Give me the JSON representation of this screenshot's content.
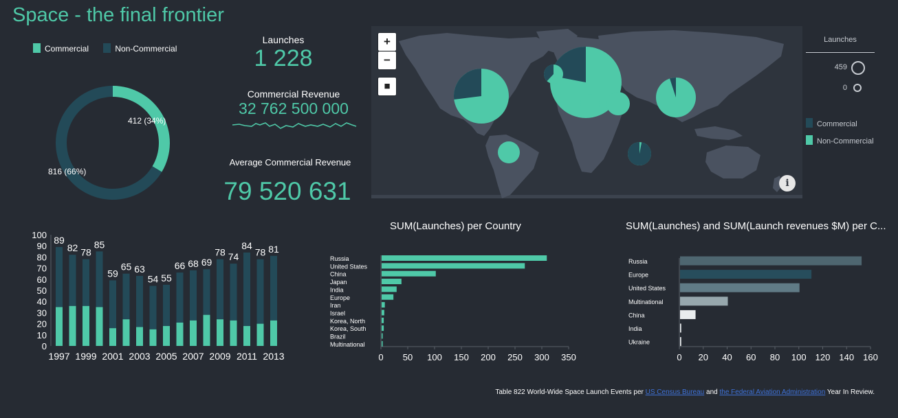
{
  "title": "Space - the final frontier",
  "colors": {
    "accent": "#4fc9a8",
    "dark_series": "#234a58",
    "background": "#262b33",
    "map_bg": "#2e343d",
    "land": "#4a5260"
  },
  "donut": {
    "legend": [
      {
        "label": "Commercial",
        "color": "#4fc9a8"
      },
      {
        "label": "Non-Commercial",
        "color": "#234a58"
      }
    ],
    "commercial": {
      "value": 412,
      "label": "412 (34%)"
    },
    "non_commercial": {
      "value": 816,
      "label": "816 (66%)"
    }
  },
  "kpis": {
    "launches": {
      "label": "Launches",
      "value": "1 228"
    },
    "commercial_revenue": {
      "label": "Commercial Revenue",
      "value": "32 762 500 000"
    },
    "average_revenue": {
      "label": "Average Commercial Revenue",
      "value": "79 520 631"
    }
  },
  "map": {
    "zoom_in_label": "+",
    "zoom_out_label": "−",
    "select_label": "■",
    "info_label": "i",
    "size_legend_title": "Launches",
    "size_legend_max": "459",
    "size_legend_min": "0",
    "color_legend": [
      {
        "label": "Commercial",
        "color": "#234a58"
      },
      {
        "label": "Non-Commercial",
        "color": "#4fc9a8"
      }
    ],
    "pies": [
      {
        "name": "usa",
        "commercial_fraction": 0.27
      },
      {
        "name": "russia",
        "commercial_fraction": 0.22
      },
      {
        "name": "europe",
        "commercial_fraction": 0.38
      },
      {
        "name": "china",
        "commercial_fraction": 0.05
      },
      {
        "name": "india",
        "commercial_fraction": 0.0
      },
      {
        "name": "iran",
        "commercial_fraction": 0.0
      },
      {
        "name": "brazil",
        "commercial_fraction": 0.0
      },
      {
        "name": "multinational",
        "commercial_fraction": 0.97
      }
    ]
  },
  "chart_data": [
    {
      "id": "launches-per-year",
      "type": "bar",
      "title": "",
      "categories": [
        1997,
        1998,
        1999,
        2000,
        2001,
        2002,
        2003,
        2004,
        2005,
        2006,
        2007,
        2008,
        2009,
        2010,
        2011,
        2012,
        2013
      ],
      "x_tick_labels": [
        "1997",
        "1999",
        "2001",
        "2003",
        "2005",
        "2007",
        "2009",
        "2011",
        "2013"
      ],
      "series": [
        {
          "name": "Commercial",
          "values": [
            35,
            36,
            36,
            35,
            16,
            24,
            17,
            15,
            18,
            21,
            23,
            28,
            24,
            23,
            18,
            20,
            23
          ]
        },
        {
          "name": "Non-Commercial",
          "values": [
            54,
            46,
            42,
            50,
            43,
            41,
            46,
            39,
            37,
            45,
            45,
            41,
            54,
            51,
            66,
            58,
            58
          ]
        }
      ],
      "totals": [
        89,
        82,
        78,
        85,
        59,
        65,
        63,
        54,
        55,
        66,
        68,
        69,
        78,
        74,
        84,
        78,
        81
      ],
      "ylim": [
        0,
        100
      ],
      "yticks": [
        0,
        10,
        20,
        30,
        40,
        50,
        60,
        70,
        80,
        90,
        100
      ]
    },
    {
      "id": "launches-per-country",
      "type": "bar",
      "orientation": "horizontal",
      "title": "SUM(Launches) per Country",
      "categories": [
        "Russia",
        "United States",
        "China",
        "Japan",
        "India",
        "Europe",
        "Iran",
        "Israel",
        "Korea, North",
        "Korea, South",
        "Brazil",
        "Multinational"
      ],
      "values": [
        308,
        267,
        101,
        37,
        28,
        22,
        6,
        5,
        4,
        4,
        2,
        2
      ],
      "xlim": [
        0,
        350
      ],
      "xticks": [
        0,
        50,
        100,
        150,
        200,
        250,
        300,
        350
      ]
    },
    {
      "id": "launches-and-revenue",
      "type": "bar",
      "orientation": "horizontal",
      "title": "SUM(Launches) and SUM(Launch revenues $M) per C...",
      "categories": [
        "Russia",
        "Europe",
        "United States",
        "Multinational",
        "China",
        "India",
        "Ukraine"
      ],
      "values": [
        152,
        110,
        100,
        40,
        13,
        1,
        1
      ],
      "bar_colors": [
        "#4e6670",
        "#274d5c",
        "#607b86",
        "#97a7ad",
        "#e9ecee",
        "#e9ecee",
        "#e9ecee"
      ],
      "xlim": [
        0,
        160
      ],
      "xticks": [
        0,
        20,
        40,
        60,
        80,
        100,
        120,
        140,
        160
      ]
    }
  ],
  "footer": {
    "prefix": "Table 822 World-Wide Space Launch Events per ",
    "link1": "US Census Bureau",
    "middle": " and ",
    "link2": "the Federal Aviation Administration",
    "suffix": " Year In Review."
  }
}
